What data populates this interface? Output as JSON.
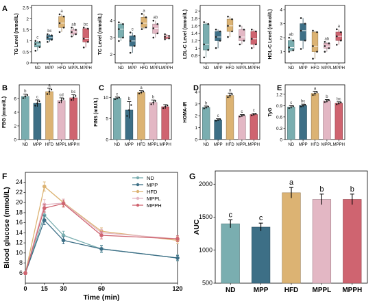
{
  "colors": {
    "ND": "#7aaeb0",
    "MPP": "#3d6f86",
    "HFD": "#dcb373",
    "MPPL": "#e3b7c4",
    "MPPH": "#cf6470"
  },
  "chart_data": [
    {
      "type": "box",
      "panel_label": "A",
      "ylabel": "TG Level (mmol/L)",
      "categories": [
        "ND",
        "MPP",
        "HFD",
        "MPPL",
        "MPPH"
      ],
      "ylim": [
        0,
        2.6
      ],
      "yticks": [
        0,
        0.5,
        1.0,
        1.5,
        2.0,
        2.5
      ],
      "grid": false,
      "boxes": [
        {
          "q1": 0.72,
          "median": 0.85,
          "q3": 0.95,
          "min": 0.55,
          "max": 1.0
        },
        {
          "q1": 1.05,
          "median": 1.15,
          "q3": 1.25,
          "min": 0.95,
          "max": 1.3
        },
        {
          "q1": 1.6,
          "median": 1.8,
          "q3": 2.1,
          "min": 1.4,
          "max": 2.2
        },
        {
          "q1": 1.3,
          "median": 1.4,
          "q3": 1.5,
          "min": 1.2,
          "max": 1.6
        },
        {
          "q1": 0.95,
          "median": 1.1,
          "q3": 1.55,
          "min": 0.7,
          "max": 1.6
        }
      ],
      "letters": [
        "c",
        "bc",
        "a",
        "ab",
        "bc"
      ]
    },
    {
      "type": "box",
      "panel_label": "",
      "ylabel": "TC Level (mmol/L)",
      "categories": [
        "ND",
        "MPP",
        "HFD",
        "MPPL",
        "MPPH"
      ],
      "ylim": [
        1.5,
        4.9
      ],
      "yticks": [
        2,
        3,
        4
      ],
      "grid": false,
      "boxes": [
        {
          "q1": 3.0,
          "median": 3.5,
          "q3": 3.8,
          "min": 2.8,
          "max": 3.9
        },
        {
          "q1": 2.5,
          "median": 2.8,
          "q3": 3.1,
          "min": 2.1,
          "max": 3.3
        },
        {
          "q1": 3.6,
          "median": 3.85,
          "q3": 4.2,
          "min": 3.5,
          "max": 4.4
        },
        {
          "q1": 3.25,
          "median": 3.55,
          "q3": 3.8,
          "min": 3.0,
          "max": 4.0
        },
        {
          "q1": 2.95,
          "median": 3.05,
          "q3": 3.1,
          "min": 2.9,
          "max": 3.2
        }
      ],
      "letters": [
        "",
        "c",
        "a",
        "ab",
        ""
      ]
    },
    {
      "type": "box",
      "panel_label": "",
      "ylabel": "LDL-C Level (mmol/L)",
      "categories": [
        "ND",
        "MPP",
        "HFD",
        "MPPL",
        "MPPH"
      ],
      "ylim": [
        0.6,
        2.15
      ],
      "yticks": [
        0.8,
        1.0,
        1.2,
        1.4,
        1.6,
        1.8,
        2.0
      ],
      "grid": false,
      "boxes": [
        {
          "q1": 0.95,
          "median": 1.1,
          "q3": 1.65,
          "min": 0.75,
          "max": 1.7
        },
        {
          "q1": 1.2,
          "median": 1.3,
          "q3": 1.45,
          "min": 1.0,
          "max": 1.5
        },
        {
          "q1": 1.45,
          "median": 1.6,
          "q3": 1.78,
          "min": 1.3,
          "max": 1.85
        },
        {
          "q1": 1.2,
          "median": 1.3,
          "q3": 1.5,
          "min": 1.1,
          "max": 1.6
        },
        {
          "q1": 1.1,
          "median": 1.25,
          "q3": 1.45,
          "min": 1.0,
          "max": 1.5
        }
      ],
      "letters": [
        "",
        "",
        "",
        "",
        ""
      ]
    },
    {
      "type": "box",
      "panel_label": "",
      "ylabel": "HDL-C Level (mmol/L)",
      "categories": [
        "ND",
        "MPP",
        "HFD",
        "MPPL",
        "MPPH"
      ],
      "ylim": [
        0.2,
        4.3
      ],
      "yticks": [
        1,
        2,
        3,
        4
      ],
      "grid": false,
      "boxes": [
        {
          "q1": 1.1,
          "median": 1.3,
          "q3": 1.8,
          "min": 1.0,
          "max": 2.0
        },
        {
          "q1": 1.8,
          "median": 2.5,
          "q3": 3.0,
          "min": 1.2,
          "max": 3.4
        },
        {
          "q1": 1.0,
          "median": 1.4,
          "q3": 2.4,
          "min": 0.5,
          "max": 2.5
        },
        {
          "q1": 1.25,
          "median": 1.4,
          "q3": 1.6,
          "min": 1.0,
          "max": 1.7
        },
        {
          "q1": 1.8,
          "median": 2.1,
          "q3": 2.4,
          "min": 1.5,
          "max": 2.6
        }
      ],
      "letters": [
        "ab",
        "",
        "",
        "ab",
        "a"
      ]
    },
    {
      "type": "bar",
      "panel_label": "B",
      "ylabel": "FBG (mmol/L)",
      "categories": [
        "ND",
        "MPP",
        "HFD",
        "MPPL",
        "MPPH"
      ],
      "ylim": [
        0,
        8
      ],
      "yticks": [
        0,
        2,
        4,
        6
      ],
      "values": [
        6.3,
        5.3,
        7.0,
        5.7,
        6.1
      ],
      "errors": [
        0.35,
        0.5,
        0.5,
        0.4,
        0.45
      ],
      "letters": [
        "b",
        "c",
        "a",
        "cd",
        "bc"
      ],
      "grid": false
    },
    {
      "type": "bar",
      "panel_label": "C",
      "ylabel": "FINS (mIU/L)",
      "categories": [
        "ND",
        "MPP",
        "HFD",
        "MPPL",
        "MPPH"
      ],
      "ylim": [
        0,
        13
      ],
      "yticks": [
        0,
        5,
        10
      ],
      "values": [
        9.8,
        7.0,
        11.2,
        8.8,
        7.8
      ],
      "errors": [
        0.3,
        2.0,
        0.4,
        0.6,
        0.5
      ],
      "letters": [
        "c",
        "b",
        "a",
        "b",
        ""
      ],
      "grid": false
    },
    {
      "type": "bar",
      "panel_label": "D",
      "ylabel": "HOMA-IR",
      "categories": [
        "ND",
        "MPP",
        "HFD",
        "MPPL",
        "MPPH"
      ],
      "ylim": [
        0,
        4.6
      ],
      "yticks": [
        0,
        1,
        2,
        3,
        4
      ],
      "values": [
        2.7,
        1.65,
        3.7,
        2.0,
        2.1
      ],
      "errors": [
        0.12,
        0.1,
        0.2,
        0.1,
        0.1
      ],
      "letters": [
        "b",
        "c",
        "a",
        "c",
        "c"
      ],
      "grid": false
    },
    {
      "type": "bar",
      "panel_label": "E",
      "ylabel": "TyG",
      "categories": [
        "ND",
        "MPP",
        "HFD",
        "MPPL",
        "MPPH"
      ],
      "ylim": [
        0,
        1.45
      ],
      "yticks": [
        0,
        0.3,
        0.6,
        0.9,
        1.2
      ],
      "values": [
        0.86,
        0.9,
        1.22,
        1.02,
        0.96
      ],
      "errors": [
        0.04,
        0.04,
        0.06,
        0.04,
        0.04
      ],
      "letters": [
        "c",
        "bc",
        "a",
        "b",
        "bc"
      ],
      "grid": false
    },
    {
      "type": "line",
      "panel_label": "F",
      "xlabel": "Time (min)",
      "ylabel": "Blood glucose (mmol/L)",
      "x": [
        0,
        15,
        30,
        60,
        120
      ],
      "xticks": [
        0,
        15,
        30,
        60,
        120
      ],
      "xlim": [
        0,
        120
      ],
      "ylim": [
        4,
        26
      ],
      "yticks": [
        6,
        8,
        10,
        12,
        14,
        16,
        18,
        20,
        22,
        24
      ],
      "series": [
        {
          "name": "ND",
          "values": [
            6.0,
            17.5,
            13.5,
            10.8,
            9.0
          ],
          "errors": [
            0.3,
            0.8,
            0.8,
            0.7,
            0.6
          ]
        },
        {
          "name": "MPP",
          "values": [
            6.0,
            16.5,
            12.5,
            10.8,
            9.0
          ],
          "errors": [
            0.3,
            0.9,
            0.7,
            0.6,
            0.5
          ]
        },
        {
          "name": "HFD",
          "values": [
            6.0,
            23.2,
            20.0,
            14.3,
            12.5
          ],
          "errors": [
            0.3,
            0.9,
            0.7,
            0.7,
            0.7
          ]
        },
        {
          "name": "MPPL",
          "values": [
            6.0,
            19.6,
            19.9,
            14.0,
            12.8
          ],
          "errors": [
            0.3,
            1.0,
            0.8,
            0.7,
            0.6
          ]
        },
        {
          "name": "MPPH",
          "values": [
            6.0,
            18.9,
            19.8,
            13.5,
            12.8
          ],
          "errors": [
            0.3,
            0.8,
            0.7,
            0.7,
            0.6
          ]
        }
      ],
      "legend_position": "top-right",
      "grid": false
    },
    {
      "type": "bar",
      "panel_label": "G",
      "xlabel": "",
      "ylabel": "AUC",
      "categories": [
        "ND",
        "MPP",
        "HFD",
        "MPPL",
        "MPPH"
      ],
      "ylim": [
        500,
        2200
      ],
      "yticks": [
        500,
        1000,
        1500,
        2000
      ],
      "values": [
        1400,
        1350,
        1870,
        1770,
        1770
      ],
      "errors": [
        60,
        60,
        80,
        80,
        80
      ],
      "letters": [
        "c",
        "c",
        "a",
        "b",
        "b"
      ],
      "grid": false
    }
  ]
}
